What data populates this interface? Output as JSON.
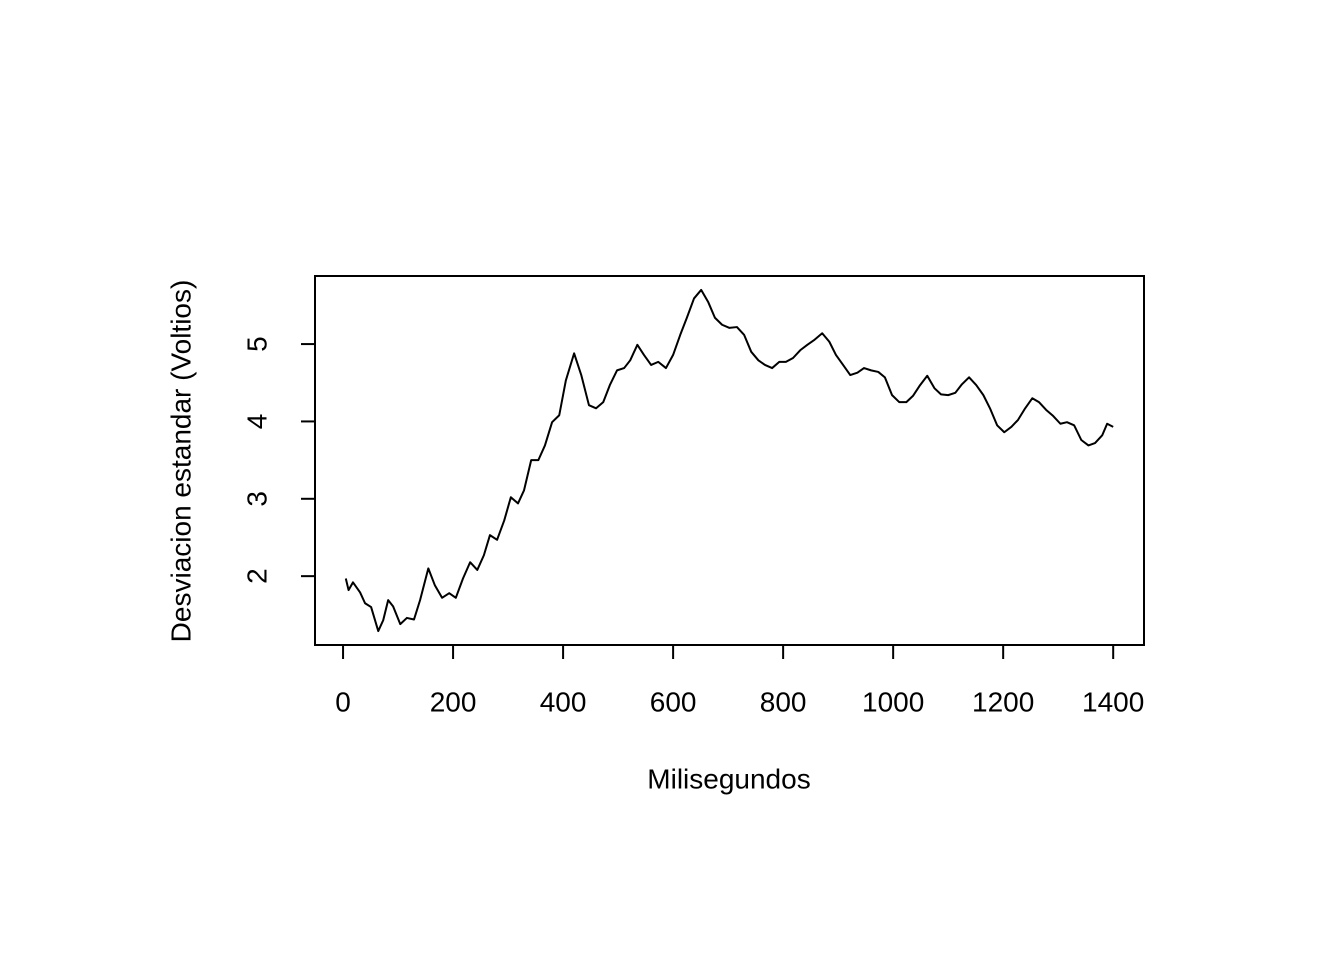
{
  "chart_data": {
    "type": "line",
    "x_label": "Milisegundos",
    "y_label": "Desviacion estandar (Voltios)",
    "xlim": [
      -51,
      1456
    ],
    "ylim": [
      1.11,
      5.88
    ],
    "xticks": [
      0,
      200,
      400,
      600,
      800,
      1000,
      1200,
      1400
    ],
    "yticks": [
      2,
      3,
      4,
      5
    ],
    "series": [
      {
        "color": "#000000",
        "x": [
          5,
          10,
          18,
          31,
          40,
          51,
          64,
          73,
          82,
          91,
          104,
          116,
          129,
          140,
          155,
          167,
          180,
          193,
          205,
          218,
          231,
          244,
          256,
          267,
          280,
          293,
          305,
          318,
          329,
          342,
          355,
          367,
          380,
          393,
          405,
          420,
          433,
          447,
          460,
          473,
          485,
          498,
          511,
          522,
          535,
          547,
          560,
          573,
          587,
          600,
          613,
          625,
          638,
          651,
          664,
          676,
          689,
          702,
          716,
          729,
          742,
          755,
          767,
          780,
          793,
          805,
          818,
          831,
          844,
          856,
          871,
          884,
          896,
          909,
          922,
          935,
          947,
          960,
          973,
          985,
          998,
          1011,
          1024,
          1036,
          1049,
          1062,
          1075,
          1087,
          1100,
          1113,
          1125,
          1138,
          1151,
          1164,
          1176,
          1189,
          1202,
          1215,
          1227,
          1240,
          1253,
          1265,
          1278,
          1291,
          1304,
          1316,
          1329,
          1342,
          1355,
          1367,
          1380,
          1389,
          1400
        ],
        "values": [
          1.97,
          1.82,
          1.92,
          1.79,
          1.65,
          1.6,
          1.29,
          1.43,
          1.69,
          1.61,
          1.38,
          1.46,
          1.44,
          1.69,
          2.1,
          1.88,
          1.72,
          1.78,
          1.72,
          1.97,
          2.18,
          2.08,
          2.27,
          2.53,
          2.47,
          2.72,
          3.02,
          2.94,
          3.11,
          3.5,
          3.5,
          3.69,
          3.99,
          4.08,
          4.53,
          4.88,
          4.6,
          4.21,
          4.17,
          4.25,
          4.47,
          4.66,
          4.69,
          4.79,
          4.99,
          4.86,
          4.73,
          4.77,
          4.69,
          4.86,
          5.12,
          5.34,
          5.59,
          5.7,
          5.54,
          5.34,
          5.25,
          5.21,
          5.22,
          5.12,
          4.9,
          4.79,
          4.73,
          4.69,
          4.77,
          4.77,
          4.82,
          4.92,
          4.99,
          5.05,
          5.14,
          5.03,
          4.86,
          4.73,
          4.6,
          4.63,
          4.69,
          4.66,
          4.64,
          4.57,
          4.34,
          4.25,
          4.25,
          4.33,
          4.47,
          4.59,
          4.43,
          4.35,
          4.34,
          4.37,
          4.48,
          4.57,
          4.47,
          4.34,
          4.17,
          3.95,
          3.86,
          3.93,
          4.02,
          4.17,
          4.3,
          4.25,
          4.15,
          4.07,
          3.97,
          3.99,
          3.95,
          3.76,
          3.69,
          3.72,
          3.82,
          3.97,
          3.93
        ]
      }
    ]
  }
}
